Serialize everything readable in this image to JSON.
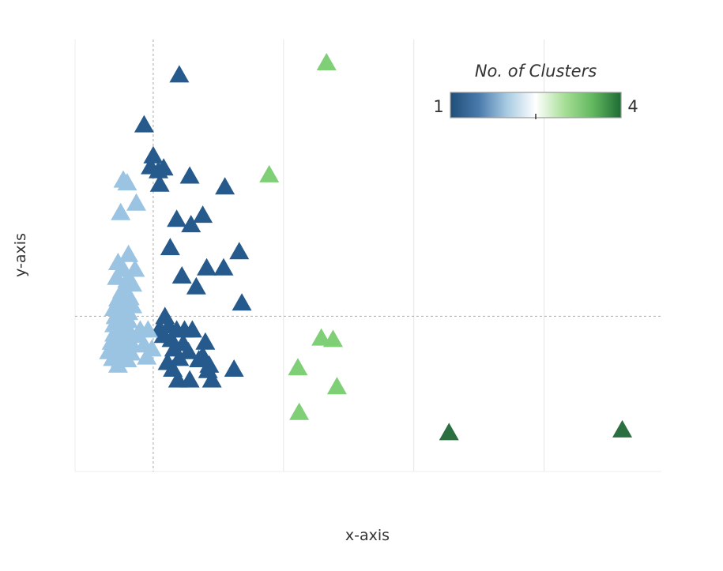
{
  "chart_data": {
    "type": "scatter",
    "marker": "triangle",
    "xlabel": "x-axis",
    "ylabel": "y-axis",
    "xlim": [
      -0.6,
      3.9
    ],
    "ylim": [
      -1.15,
      2.05
    ],
    "x_gridlines": [
      1,
      2,
      3
    ],
    "reference_lines": {
      "x": 0,
      "y": 0
    },
    "color_legend": {
      "title": "No. of Clusters",
      "min_label": "1",
      "max_label": "4",
      "min": 1,
      "max": 4,
      "marker_value": 2.5,
      "colors": [
        "#1f4e79",
        "#4a7aac",
        "#a9cce3",
        "#ffffff",
        "#a8df98",
        "#62b85f",
        "#1e6b35"
      ]
    },
    "series": [
      {
        "value": 1,
        "color": "#265a8c",
        "points": [
          [
            0.2,
            1.79
          ],
          [
            -0.07,
            1.42
          ],
          [
            0.0,
            1.19
          ],
          [
            -0.02,
            1.11
          ],
          [
            0.08,
            1.1
          ],
          [
            0.04,
            1.08
          ],
          [
            0.28,
            1.04
          ],
          [
            0.05,
            0.98
          ],
          [
            0.55,
            0.96
          ],
          [
            0.18,
            0.72
          ],
          [
            0.29,
            0.68
          ],
          [
            0.38,
            0.75
          ],
          [
            0.13,
            0.51
          ],
          [
            0.66,
            0.48
          ],
          [
            0.41,
            0.36
          ],
          [
            0.22,
            0.3
          ],
          [
            0.54,
            0.36
          ],
          [
            0.33,
            0.22
          ],
          [
            0.68,
            0.1
          ],
          [
            0.09,
            0.0
          ],
          [
            0.12,
            -0.07
          ],
          [
            0.05,
            -0.09
          ],
          [
            0.18,
            -0.1
          ],
          [
            0.24,
            -0.1
          ],
          [
            0.3,
            -0.1
          ],
          [
            0.08,
            -0.14
          ],
          [
            0.14,
            -0.17
          ],
          [
            0.23,
            -0.2
          ],
          [
            0.16,
            -0.24
          ],
          [
            0.4,
            -0.19
          ],
          [
            0.27,
            -0.26
          ],
          [
            0.38,
            -0.29
          ],
          [
            0.2,
            -0.31
          ],
          [
            0.35,
            -0.32
          ],
          [
            0.43,
            -0.36
          ],
          [
            0.11,
            -0.34
          ],
          [
            0.42,
            -0.4
          ],
          [
            0.62,
            -0.39
          ],
          [
            0.15,
            -0.39
          ],
          [
            0.19,
            -0.47
          ],
          [
            0.28,
            -0.47
          ],
          [
            0.45,
            -0.47
          ]
        ]
      },
      {
        "value": 2,
        "color": "#9ac4e2",
        "points": [
          [
            -0.23,
            1.01
          ],
          [
            -0.2,
            0.99
          ],
          [
            -0.13,
            0.84
          ],
          [
            -0.25,
            0.77
          ],
          [
            -0.19,
            0.46
          ],
          [
            -0.27,
            0.4
          ],
          [
            -0.23,
            0.35
          ],
          [
            -0.14,
            0.35
          ],
          [
            -0.28,
            0.29
          ],
          [
            -0.2,
            0.27
          ],
          [
            -0.16,
            0.24
          ],
          [
            -0.24,
            0.19
          ],
          [
            -0.18,
            0.14
          ],
          [
            -0.27,
            0.13
          ],
          [
            -0.21,
            0.11
          ],
          [
            -0.16,
            0.08
          ],
          [
            -0.3,
            0.06
          ],
          [
            -0.25,
            0.04
          ],
          [
            -0.19,
            0.03
          ],
          [
            -0.29,
            0.0
          ],
          [
            -0.23,
            -0.01
          ],
          [
            -0.19,
            -0.03
          ],
          [
            -0.3,
            -0.06
          ],
          [
            -0.25,
            -0.07
          ],
          [
            -0.2,
            -0.08
          ],
          [
            -0.1,
            -0.1
          ],
          [
            -0.04,
            -0.1
          ],
          [
            -0.3,
            -0.13
          ],
          [
            -0.24,
            -0.14
          ],
          [
            -0.19,
            -0.13
          ],
          [
            -0.12,
            -0.14
          ],
          [
            -0.32,
            -0.19
          ],
          [
            -0.27,
            -0.2
          ],
          [
            -0.21,
            -0.19
          ],
          [
            -0.16,
            -0.21
          ],
          [
            -0.07,
            -0.21
          ],
          [
            -0.34,
            -0.26
          ],
          [
            -0.28,
            -0.27
          ],
          [
            -0.22,
            -0.27
          ],
          [
            -0.17,
            -0.27
          ],
          [
            -0.01,
            -0.24
          ],
          [
            -0.31,
            -0.31
          ],
          [
            -0.25,
            -0.32
          ],
          [
            -0.2,
            -0.32
          ],
          [
            -0.05,
            -0.3
          ],
          [
            -0.27,
            -0.36
          ]
        ]
      },
      {
        "value": 3,
        "color": "#7fcf77",
        "points": [
          [
            1.33,
            1.88
          ],
          [
            0.89,
            1.05
          ],
          [
            1.29,
            -0.16
          ],
          [
            1.38,
            -0.17
          ],
          [
            1.11,
            -0.38
          ],
          [
            1.41,
            -0.52
          ],
          [
            1.12,
            -0.71
          ]
        ]
      },
      {
        "value": 4,
        "color": "#2b6e3f",
        "points": [
          [
            2.27,
            -0.86
          ],
          [
            3.6,
            -0.84
          ]
        ]
      }
    ]
  }
}
